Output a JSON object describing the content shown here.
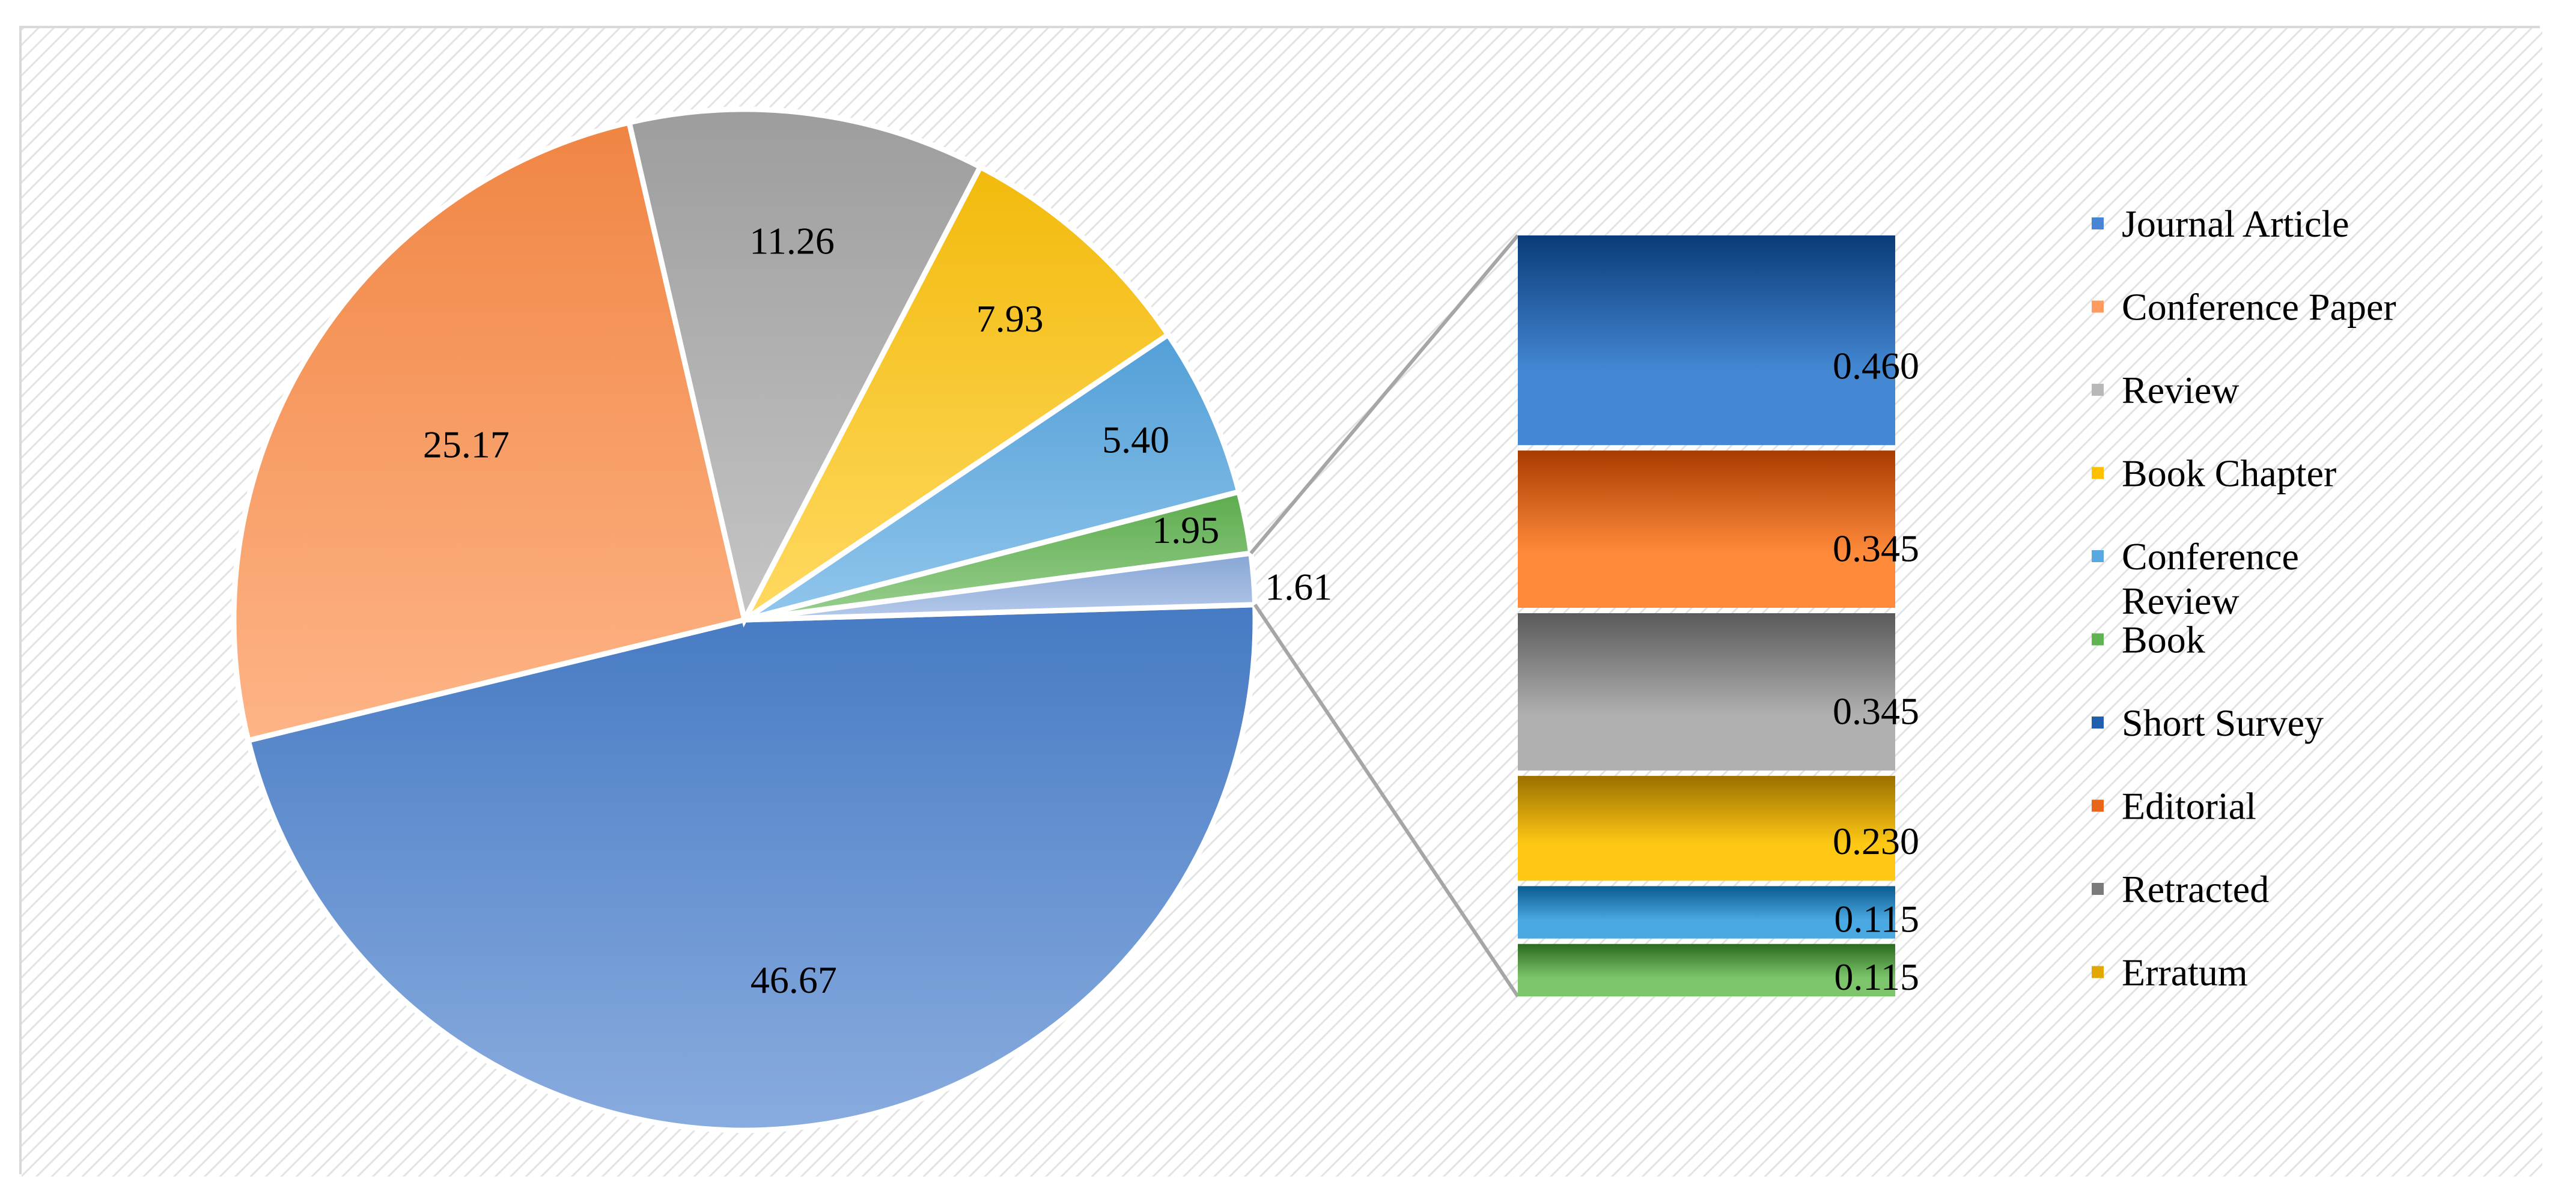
{
  "chart_data": {
    "type": "pie",
    "subtype": "bar-of-pie",
    "series": [
      {
        "values": [
          46.67,
          25.17,
          11.26,
          7.93,
          5.4,
          1.95,
          1.61
        ]
      }
    ],
    "pie": {
      "slices": [
        {
          "value": 46.67,
          "label": "46.67",
          "color": "#4a80cd"
        },
        {
          "value": 25.17,
          "label": "25.17",
          "color": "#fd8c47"
        },
        {
          "value": 11.26,
          "label": "11.26",
          "color": "#a5a5a5"
        },
        {
          "value": 7.93,
          "label": "7.93",
          "color": "#ffc40c"
        },
        {
          "value": 5.4,
          "label": "5.40",
          "color": "#56a7e2"
        },
        {
          "value": 1.95,
          "label": "1.95",
          "color": "#62b552"
        },
        {
          "value": 1.61,
          "label": "1.61",
          "color": "#8eaee0"
        }
      ]
    },
    "bar": {
      "segments": [
        {
          "value": 0.115,
          "label": "0.115",
          "color_dark": "#2a6a1e",
          "color_light": "#7dc56b"
        },
        {
          "value": 0.115,
          "label": "0.115",
          "color_dark": "#0a5c8f",
          "color_light": "#4aa8e2"
        },
        {
          "value": 0.23,
          "label": "0.230",
          "color_dark": "#9a7000",
          "color_light": "#ffc814"
        },
        {
          "value": 0.345,
          "label": "0.345",
          "color_dark": "#5a5a5a",
          "color_light": "#b0b0b0"
        },
        {
          "value": 0.345,
          "label": "0.345",
          "color_dark": "#a83c00",
          "color_light": "#ff8a3a"
        },
        {
          "value": 0.46,
          "label": "0.460",
          "color_dark": "#0a3c78",
          "color_light": "#4488d4"
        }
      ]
    },
    "legend": {
      "position": "right",
      "items": [
        {
          "label": "Journal Article",
          "color": "#4a84d4"
        },
        {
          "label": "Conference Paper",
          "color": "#ff9b5e"
        },
        {
          "label": "Review",
          "color": "#b8b8b8"
        },
        {
          "label": "Book Chapter",
          "color": "#ffc000"
        },
        {
          "label": "Conference Review",
          "color": "#5aa8e0"
        },
        {
          "label": "Book",
          "color": "#5fb350"
        },
        {
          "label": "Short Survey",
          "color": "#1f5fae"
        },
        {
          "label": "Editorial",
          "color": "#e8651a"
        },
        {
          "label": "Retracted",
          "color": "#7a7a7a"
        },
        {
          "label": "Erratum",
          "color": "#e0a800"
        }
      ]
    }
  }
}
